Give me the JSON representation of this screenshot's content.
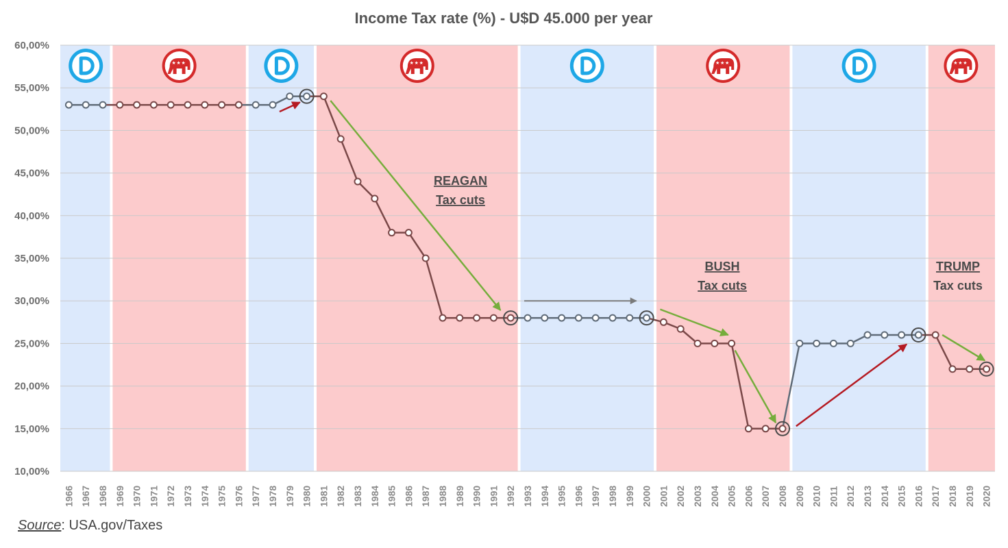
{
  "colors": {
    "democrat_band": "#dce9fc",
    "republican_band": "#fccbcc",
    "democrat_line": "#5f6b78",
    "republican_line": "#7a4848",
    "democrat_badge": "#1ea7e6",
    "republican_badge": "#d42a2a",
    "green_arrow": "#76ad3c",
    "red_arrow": "#b51a22",
    "grey_arrow": "#7a7a7a",
    "grid": "#c9c9c9"
  },
  "chart_data": {
    "type": "line",
    "title": "Income Tax rate (%) - U$D 45.000 per year",
    "xlabel": "",
    "ylabel": "",
    "ylim": [
      10,
      60
    ],
    "yticks": [
      10,
      15,
      20,
      25,
      30,
      35,
      40,
      45,
      50,
      55,
      60
    ],
    "ytick_labels": [
      "10,00%",
      "15,00%",
      "20,00%",
      "25,00%",
      "30,00%",
      "35,00%",
      "40,00%",
      "45,00%",
      "50,00%",
      "55,00%",
      "60,00%"
    ],
    "grid": "horizontal",
    "legend": "none",
    "categories": [
      "1966",
      "1967",
      "1968",
      "1969",
      "1970",
      "1971",
      "1972",
      "1973",
      "1974",
      "1975",
      "1976",
      "1977",
      "1978",
      "1979",
      "1980",
      "1981",
      "1982",
      "1983",
      "1984",
      "1985",
      "1986",
      "1987",
      "1988",
      "1989",
      "1990",
      "1991",
      "1992",
      "1993",
      "1994",
      "1995",
      "1996",
      "1997",
      "1998",
      "1999",
      "2000",
      "2001",
      "2002",
      "2003",
      "2004",
      "2005",
      "2006",
      "2007",
      "2008",
      "2009",
      "2010",
      "2011",
      "2012",
      "2013",
      "2014",
      "2015",
      "2016",
      "2017",
      "2018",
      "2019",
      "2020"
    ],
    "series": [
      {
        "values": [
          53,
          53,
          53,
          53,
          53,
          53,
          53,
          53,
          53,
          53,
          53,
          53,
          53,
          54,
          54,
          54,
          49,
          44,
          42,
          38,
          38,
          35,
          28,
          28,
          28,
          28,
          28,
          28,
          28,
          28,
          28,
          28,
          28,
          28,
          28,
          27.5,
          26.7,
          25,
          25,
          25,
          15,
          15,
          15,
          25,
          25,
          25,
          25,
          26,
          26,
          26,
          26,
          26,
          22,
          22,
          22
        ]
      }
    ],
    "party_periods": [
      {
        "party": "D",
        "start": "1966",
        "end": "1968"
      },
      {
        "party": "R",
        "start": "1969",
        "end": "1976"
      },
      {
        "party": "D",
        "start": "1977",
        "end": "1980"
      },
      {
        "party": "R",
        "start": "1981",
        "end": "1992"
      },
      {
        "party": "D",
        "start": "1993",
        "end": "2000"
      },
      {
        "party": "R",
        "start": "2001",
        "end": "2008"
      },
      {
        "party": "D",
        "start": "2009",
        "end": "2016"
      },
      {
        "party": "R",
        "start": "2017",
        "end": "2020"
      }
    ],
    "highlighted_points": [
      "1980",
      "1992",
      "2000",
      "2008",
      "2016",
      "2020"
    ],
    "annotations": [
      {
        "line1": "REAGAN",
        "line2": "Tax cuts"
      },
      {
        "line1": "BUSH",
        "line2": "Tax cuts"
      },
      {
        "line1": "TRUMP",
        "line2": "Tax cuts"
      }
    ],
    "arrows": [
      {
        "color": "red",
        "from": [
          "1978.4",
          52.2
        ],
        "to": [
          "1979.6",
          53.3
        ]
      },
      {
        "color": "green",
        "from": [
          "1981.4",
          53.5
        ],
        "to": [
          "1991.4",
          28.9
        ]
      },
      {
        "color": "grey",
        "from": [
          "1992.8",
          30
        ],
        "to": [
          "1999.4",
          30
        ]
      },
      {
        "color": "green",
        "from": [
          "2000.8",
          29
        ],
        "to": [
          "2004.8",
          26
        ]
      },
      {
        "color": "green",
        "from": [
          "2005.2",
          24.2
        ],
        "to": [
          "2007.6",
          15.7
        ]
      },
      {
        "color": "red",
        "from": [
          "2008.8",
          15.3
        ],
        "to": [
          "2015.3",
          24.9
        ]
      },
      {
        "color": "green",
        "from": [
          "2017.4",
          26
        ],
        "to": [
          "2019.9",
          23
        ]
      }
    ]
  },
  "source": {
    "label": "Source",
    "text": ": USA.gov/Taxes"
  }
}
